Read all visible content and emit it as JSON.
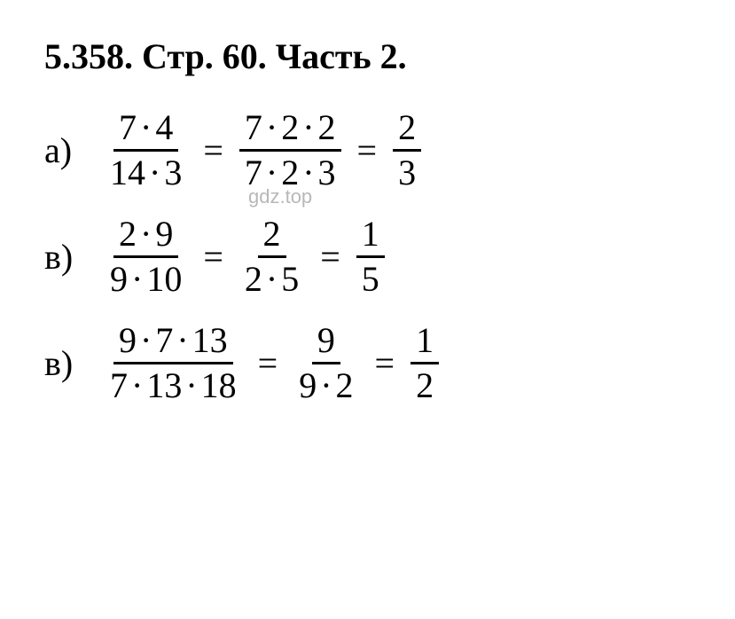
{
  "heading": {
    "problem_number": "5.358.",
    "page_label": "Стр. 60.",
    "part_label": "Часть 2."
  },
  "watermark": {
    "text": "gdz.top",
    "color": "#b8b8b8",
    "fontsize": 22
  },
  "styling": {
    "text_color": "#000000",
    "background_color": "#ffffff",
    "heading_fontsize": 40,
    "heading_fontweight": "bold",
    "equation_fontsize": 40,
    "fraction_bar_width": 3,
    "font_family": "Times New Roman"
  },
  "equations": [
    {
      "label": "а)",
      "steps": [
        {
          "num_parts": [
            "7",
            "·",
            "4"
          ],
          "den_parts": [
            "14",
            "·",
            "3"
          ]
        },
        {
          "num_parts": [
            "7",
            "·",
            "2",
            "·",
            "2"
          ],
          "den_parts": [
            "7",
            "·",
            "2",
            "·",
            "3"
          ]
        },
        {
          "num_parts": [
            "2"
          ],
          "den_parts": [
            "3"
          ]
        }
      ]
    },
    {
      "label": "в)",
      "steps": [
        {
          "num_parts": [
            "2",
            "·",
            "9"
          ],
          "den_parts": [
            "9",
            "·",
            "10"
          ]
        },
        {
          "num_parts": [
            "2"
          ],
          "den_parts": [
            "2",
            "·",
            "5"
          ]
        },
        {
          "num_parts": [
            "1"
          ],
          "den_parts": [
            "5"
          ]
        }
      ]
    },
    {
      "label": "в)",
      "steps": [
        {
          "num_parts": [
            "9",
            "·",
            "7",
            "·",
            "13"
          ],
          "den_parts": [
            "7",
            "·",
            "13",
            "·",
            "18"
          ]
        },
        {
          "num_parts": [
            "9"
          ],
          "den_parts": [
            "9",
            "·",
            "2"
          ]
        },
        {
          "num_parts": [
            "1"
          ],
          "den_parts": [
            "2"
          ]
        }
      ]
    }
  ]
}
